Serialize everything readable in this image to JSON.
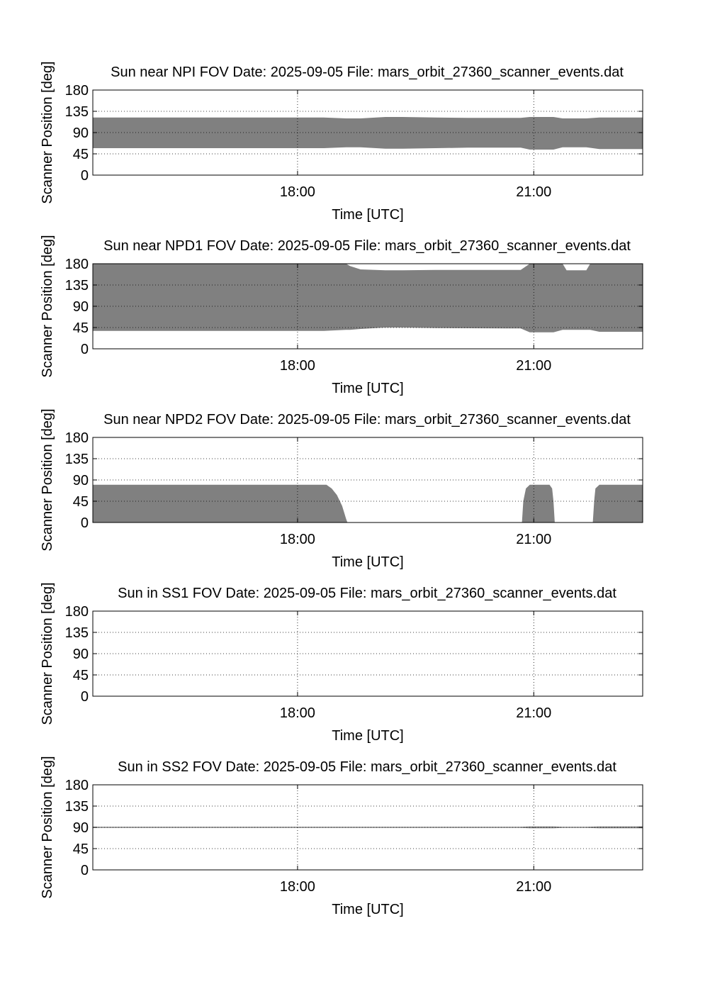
{
  "figure": {
    "date_text": "Date: 2025-09-05",
    "file_text": "File: mars_orbit_27360_scanner_events.dat",
    "fill_color": "#808080",
    "x_axis_label": "Time [UTC]",
    "y_axis_label": "Scanner Position [deg]"
  },
  "chart_data": [
    {
      "type": "area",
      "title": "Sun near NPI FOV",
      "xlabel": "Time [UTC]",
      "ylabel": "Scanner Position [deg]",
      "xlim": [
        "15:24",
        "22:23"
      ],
      "ylim": [
        0,
        180
      ],
      "xticks": [
        "18:00",
        "21:00"
      ],
      "yticks": [
        0,
        45,
        90,
        135,
        180
      ],
      "grid": true,
      "x": [
        "15:24",
        "18:00",
        "18:20",
        "18:37",
        "18:48",
        "19:07",
        "19:20",
        "19:45",
        "20:10",
        "20:50",
        "20:57",
        "21:05",
        "21:15",
        "21:22",
        "21:34",
        "21:40",
        "21:50",
        "22:23"
      ],
      "upper": [
        122,
        122,
        122,
        120,
        120,
        123,
        123,
        122,
        121,
        121,
        123,
        123,
        123,
        120,
        120,
        120,
        122,
        122
      ],
      "lower": [
        57,
        57,
        57,
        59,
        59,
        56,
        56,
        57,
        58,
        58,
        54,
        54,
        54,
        59,
        59,
        59,
        55,
        55
      ]
    },
    {
      "type": "area",
      "title": "Sun near NPD1 FOV",
      "xlabel": "Time [UTC]",
      "ylabel": "Scanner Position [deg]",
      "xlim": [
        "15:24",
        "22:23"
      ],
      "ylim": [
        0,
        180
      ],
      "xticks": [
        "18:00",
        "21:00"
      ],
      "yticks": [
        0,
        45,
        90,
        135,
        180
      ],
      "grid": true,
      "x": [
        "15:24",
        "18:00",
        "18:20",
        "18:37",
        "18:40",
        "18:48",
        "19:07",
        "19:20",
        "19:45",
        "20:40",
        "20:50",
        "20:57",
        "21:05",
        "21:15",
        "21:22",
        "21:25",
        "21:34",
        "21:40",
        "21:43",
        "21:50",
        "22:23"
      ],
      "upper": [
        180,
        180,
        180,
        180,
        175,
        168,
        166,
        166,
        167,
        167,
        167,
        180,
        180,
        180,
        180,
        166,
        166,
        166,
        180,
        180,
        180
      ],
      "lower": [
        38,
        38,
        38,
        40,
        40,
        42,
        45,
        45,
        44,
        43,
        43,
        35,
        35,
        35,
        40,
        40,
        40,
        40,
        40,
        36,
        36
      ]
    },
    {
      "type": "area",
      "title": "Sun near NPD2 FOV",
      "xlabel": "Time [UTC]",
      "ylabel": "Scanner Position [deg]",
      "xlim": [
        "15:24",
        "22:23"
      ],
      "ylim": [
        0,
        180
      ],
      "xticks": [
        "18:00",
        "21:00"
      ],
      "yticks": [
        0,
        45,
        90,
        135,
        180
      ],
      "grid": true,
      "x": [
        "15:24",
        "18:00",
        "18:22",
        "18:26",
        "18:30",
        "18:34",
        "18:37",
        "18:38",
        "20:51",
        "20:52",
        "20:54",
        "20:57",
        "21:05",
        "21:12",
        "21:14",
        "21:15",
        "21:16",
        "21:45",
        "21:46",
        "21:47",
        "21:50",
        "22:23"
      ],
      "upper": [
        80,
        80,
        80,
        72,
        58,
        35,
        8,
        0,
        0,
        45,
        72,
        80,
        80,
        80,
        72,
        45,
        0,
        0,
        45,
        72,
        80,
        80
      ],
      "lower": [
        0,
        0,
        0,
        0,
        0,
        0,
        0,
        0,
        0,
        0,
        0,
        0,
        0,
        0,
        0,
        0,
        0,
        0,
        0,
        0,
        0,
        0
      ]
    },
    {
      "type": "area",
      "title": "Sun in SS1 FOV",
      "xlabel": "Time [UTC]",
      "ylabel": "Scanner Position [deg]",
      "xlim": [
        "15:24",
        "22:23"
      ],
      "ylim": [
        0,
        180
      ],
      "xticks": [
        "18:00",
        "21:00"
      ],
      "yticks": [
        0,
        45,
        90,
        135,
        180
      ],
      "grid": true,
      "x": [],
      "upper": [],
      "lower": []
    },
    {
      "type": "area",
      "title": "Sun in SS2 FOV",
      "xlabel": "Time [UTC]",
      "ylabel": "Scanner Position [deg]",
      "xlim": [
        "15:24",
        "22:23"
      ],
      "ylim": [
        0,
        180
      ],
      "xticks": [
        "18:00",
        "21:00"
      ],
      "yticks": [
        0,
        45,
        90,
        135,
        180
      ],
      "grid": true,
      "x": [
        "15:24",
        "20:50",
        "20:57",
        "21:15",
        "21:22",
        "21:40",
        "21:50",
        "22:23"
      ],
      "upper": [
        91,
        91,
        92,
        92,
        91,
        91,
        92,
        92
      ],
      "lower": [
        89,
        89,
        88,
        88,
        89,
        89,
        88,
        88
      ]
    }
  ]
}
